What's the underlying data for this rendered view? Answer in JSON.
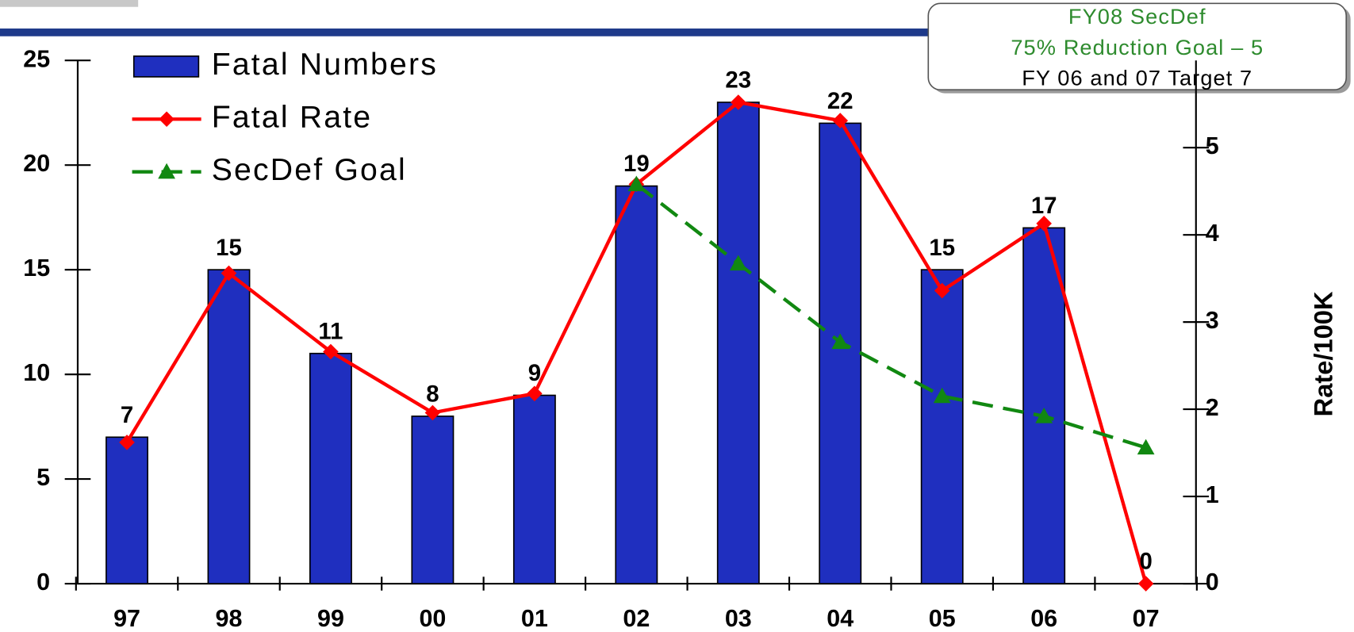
{
  "chart_data": {
    "type": "bar_line",
    "categories": [
      "97",
      "98",
      "99",
      "00",
      "01",
      "02",
      "03",
      "04",
      "05",
      "06",
      "07"
    ],
    "series": [
      {
        "name": "Fatal Numbers",
        "type": "bar",
        "color": "#1f2fbf",
        "values": [
          7,
          15,
          11,
          8,
          9,
          19,
          23,
          22,
          15,
          17,
          0
        ]
      },
      {
        "name": "Fatal Rate",
        "type": "line",
        "axis": "y2",
        "color": "#ff0000",
        "marker": "diamond",
        "values": [
          1.62,
          3.56,
          2.66,
          1.96,
          2.18,
          4.58,
          5.52,
          5.31,
          3.36,
          4.13,
          0
        ]
      },
      {
        "name": "SecDef Goal",
        "type": "line",
        "axis": "y2",
        "color": "#118811",
        "marker": "triangle",
        "dashed": true,
        "values": [
          null,
          null,
          null,
          null,
          null,
          4.58,
          3.67,
          2.77,
          2.15,
          1.92,
          1.56
        ]
      }
    ],
    "ylim": [
      0,
      25
    ],
    "yticks": [
      0,
      5,
      10,
      15,
      20,
      25
    ],
    "y2lim": [
      0,
      6
    ],
    "y2ticks": [
      0,
      1,
      2,
      3,
      4,
      5
    ],
    "y2label": "Rate/100K",
    "annotations": [
      "FY08 SecDef",
      "75% Reduction Goal – 5",
      "FY 06 and 07 Target 7"
    ],
    "legend": "top-left"
  }
}
